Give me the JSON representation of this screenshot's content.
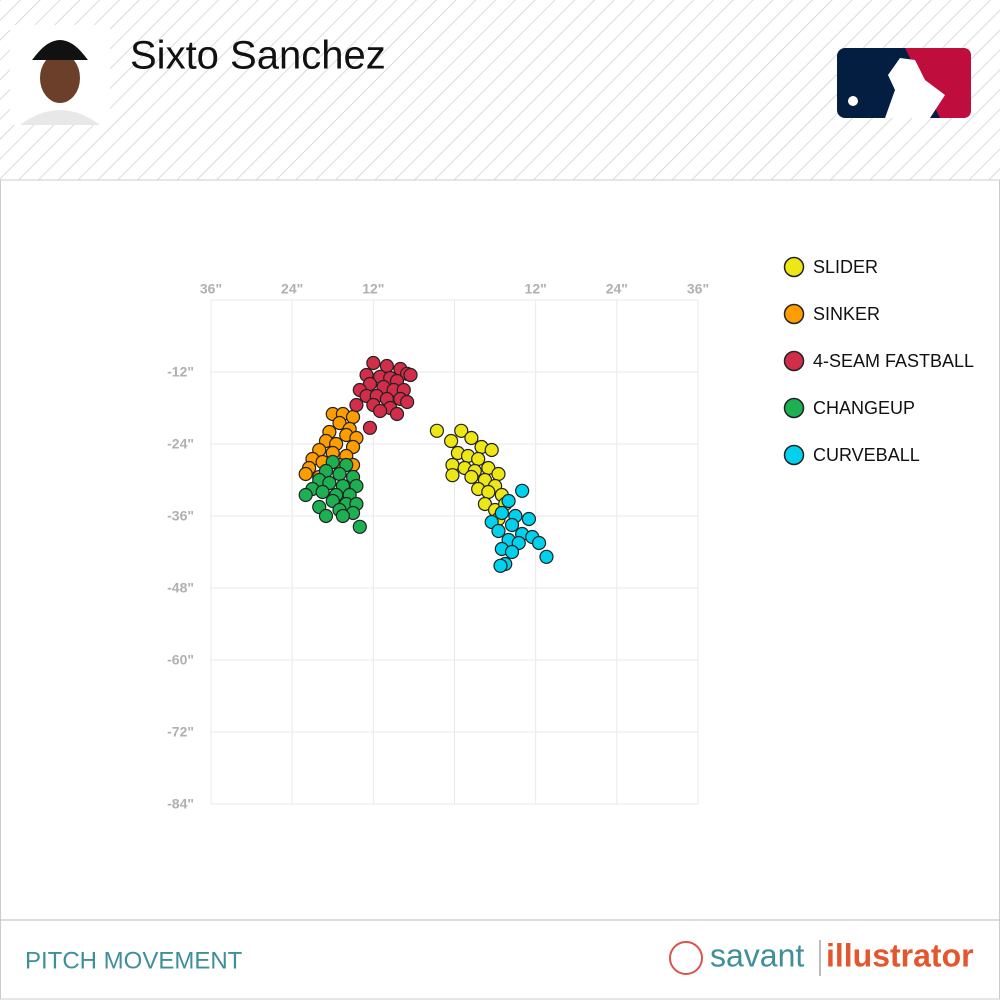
{
  "chart_data": {
    "type": "scatter",
    "title": "Sixto Sanchez",
    "xlim": [
      -36,
      36
    ],
    "ylim": [
      -84,
      0
    ],
    "xticks": [
      {
        "value": -36,
        "label": "36\""
      },
      {
        "value": -24,
        "label": "24\""
      },
      {
        "value": -12,
        "label": "12\""
      },
      {
        "value": 0,
        "label": null
      },
      {
        "value": 12,
        "label": "12\""
      },
      {
        "value": 24,
        "label": "24\""
      },
      {
        "value": 36,
        "label": "36\""
      }
    ],
    "yticks": [
      {
        "value": 0,
        "label": null
      },
      {
        "value": -12,
        "label": "-12\""
      },
      {
        "value": -24,
        "label": "-24\""
      },
      {
        "value": -36,
        "label": "-36\""
      },
      {
        "value": -48,
        "label": "-48\""
      },
      {
        "value": -60,
        "label": "-60\""
      },
      {
        "value": -72,
        "label": "-72\""
      },
      {
        "value": -84,
        "label": "-84\""
      }
    ],
    "grid": true,
    "legend": "right",
    "series": [
      {
        "name": "SLIDER",
        "color": "#eee716",
        "x": [
          -2.6,
          1,
          -0.5,
          2.5,
          4,
          5.5,
          0.5,
          2,
          3.5,
          -0.3,
          1.5,
          3,
          5,
          6.5,
          2.5,
          4.5,
          -0.3,
          6,
          3.5,
          5,
          7,
          4.5,
          6,
          7.5,
          6.5
        ],
        "values": [
          -21.8,
          -21.8,
          -23.5,
          -23,
          -24.5,
          -25,
          -25.5,
          -26,
          -26.5,
          -27.5,
          -28,
          -28.5,
          -28,
          -29,
          -29.5,
          -30,
          -29.2,
          -31,
          -31.5,
          -32,
          -32.5,
          -34,
          -35,
          -34,
          -36.5
        ]
      },
      {
        "name": "SINKER",
        "color": "#fe9d00",
        "x": [
          -18,
          -16.5,
          -15,
          -17,
          -15.5,
          -18.5,
          -16,
          -14.5,
          -19,
          -17.5,
          -15,
          -20,
          -18,
          -16,
          -21,
          -19.5,
          -17,
          -15,
          -21.5,
          -22,
          -20
        ],
        "values": [
          -19,
          -19,
          -19.5,
          -20.5,
          -21.5,
          -22,
          -22.5,
          -23,
          -23.5,
          -24,
          -24.5,
          -25,
          -25.5,
          -26,
          -26.5,
          -27,
          -27.5,
          -27.5,
          -28,
          -29,
          -29.5
        ]
      },
      {
        "name": "4-SEAM FASTBALL",
        "color": "#d22d49",
        "x": [
          -12,
          -10,
          -8,
          -7,
          -6.5,
          -13,
          -11,
          -9.5,
          -8.5,
          -12.5,
          -10.5,
          -9,
          -7.5,
          -14,
          -13,
          -11.5,
          -10,
          -8,
          -7,
          -14.5,
          -12,
          -9.5,
          -8.5,
          -11,
          -12.5
        ],
        "values": [
          -10.5,
          -11,
          -11.5,
          -12.3,
          -12.5,
          -12.5,
          -12.8,
          -13,
          -13.5,
          -14,
          -14.5,
          -15,
          -15,
          -15,
          -16,
          -16,
          -16.5,
          -16.5,
          -17,
          -17.5,
          -17.5,
          -18,
          -19,
          -18.5,
          -21.3
        ]
      },
      {
        "name": "CHANGEUP",
        "color": "#1db053",
        "x": [
          -18,
          -16,
          -19,
          -17,
          -15,
          -20,
          -18.5,
          -16.5,
          -14.5,
          -21,
          -19.5,
          -17.5,
          -15.5,
          -22,
          -18,
          -16,
          -14.5,
          -20,
          -17,
          -15,
          -19,
          -16.5,
          -14
        ],
        "values": [
          -27,
          -27.5,
          -28.5,
          -29,
          -29.5,
          -30,
          -30.5,
          -31,
          -31,
          -31.5,
          -32,
          -32.5,
          -32.5,
          -32.5,
          -33.5,
          -34,
          -34,
          -34.5,
          -35,
          -35.5,
          -36,
          -36,
          -37.8
        ]
      },
      {
        "name": "CURVEBALL",
        "color": "#00d1ed",
        "x": [
          10,
          8,
          7,
          9,
          11,
          5.5,
          8.5,
          6.5,
          10,
          11.5,
          8,
          9.5,
          12.5,
          7,
          8.5,
          13.6,
          7.5,
          6.8
        ],
        "values": [
          -31.8,
          -33.5,
          -35.5,
          -36,
          -36.5,
          -37,
          -37.5,
          -38.5,
          -39,
          -39.5,
          -40,
          -40.5,
          -40.5,
          -41.5,
          -42,
          -42.8,
          -44,
          -44.3
        ]
      }
    ]
  },
  "footer": {
    "label": "PITCH MOVEMENT",
    "brand": [
      "savant",
      "illustrator"
    ]
  }
}
